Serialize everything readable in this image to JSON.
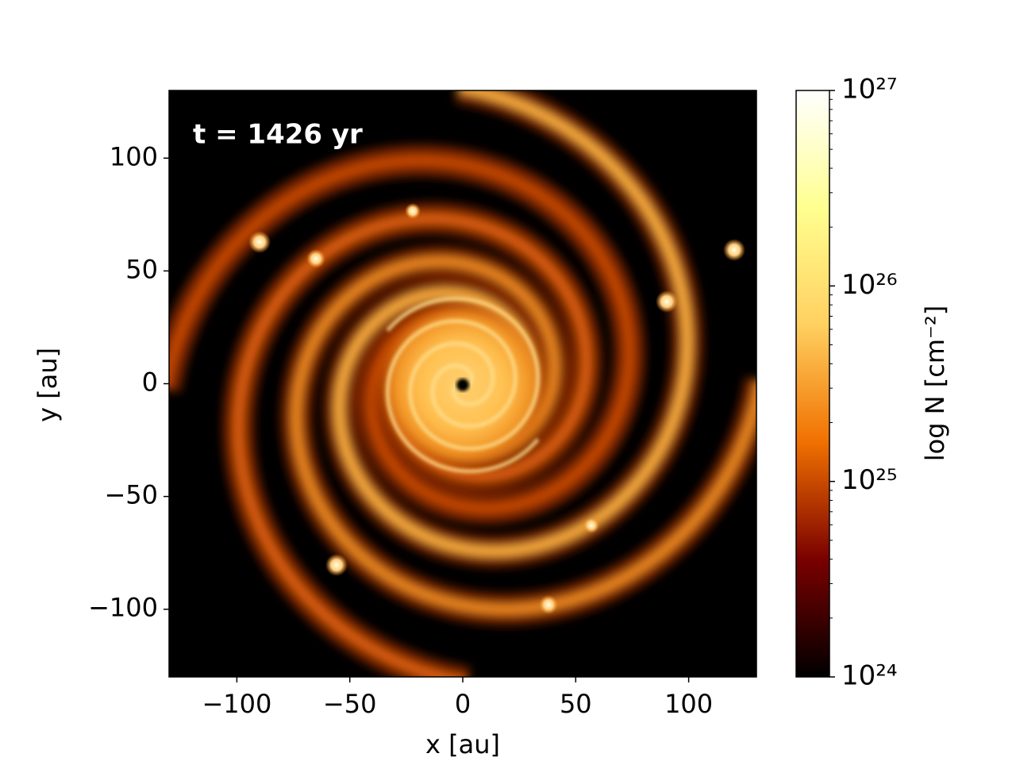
{
  "chart_data": {
    "type": "image",
    "annotation": "t = 1426 yr",
    "xlabel": "x [au]",
    "ylabel": "y [au]",
    "xlim": [
      -130,
      130
    ],
    "ylim": [
      -130,
      130
    ],
    "xticks": [
      {
        "value": -100,
        "label": "−100"
      },
      {
        "value": -50,
        "label": "−50"
      },
      0,
      50,
      100
    ],
    "yticks": [
      {
        "value": -100,
        "label": "−100"
      },
      {
        "value": -50,
        "label": "−50"
      },
      0,
      50,
      100
    ],
    "colorbar": {
      "label": "log N [cm⁻²]",
      "log": true,
      "colormap": [
        "#000000",
        "#7a0000",
        "#f07000",
        "#ffd060",
        "#ffff90",
        "#ffffff"
      ],
      "lim": [
        1e+24,
        1e+27
      ],
      "ticks": [
        {
          "value": 1e+24,
          "label": "10²⁴"
        },
        {
          "value": 1e+25,
          "label": "10²⁵"
        },
        {
          "value": 1e+26,
          "label": "10²⁶"
        },
        {
          "value": 1e+27,
          "label": "10²⁷"
        }
      ],
      "minor_ticks": [
        2e+24,
        3e+24,
        4e+24,
        5e+24,
        6e+24,
        7e+24,
        8e+24,
        9e+24,
        2e+25,
        3e+25,
        4e+25,
        5e+25,
        6e+25,
        7e+25,
        8e+25,
        9e+25,
        2e+26,
        3e+26,
        4e+26,
        5e+26,
        6e+26,
        7e+26,
        8e+26,
        9e+26
      ]
    }
  }
}
